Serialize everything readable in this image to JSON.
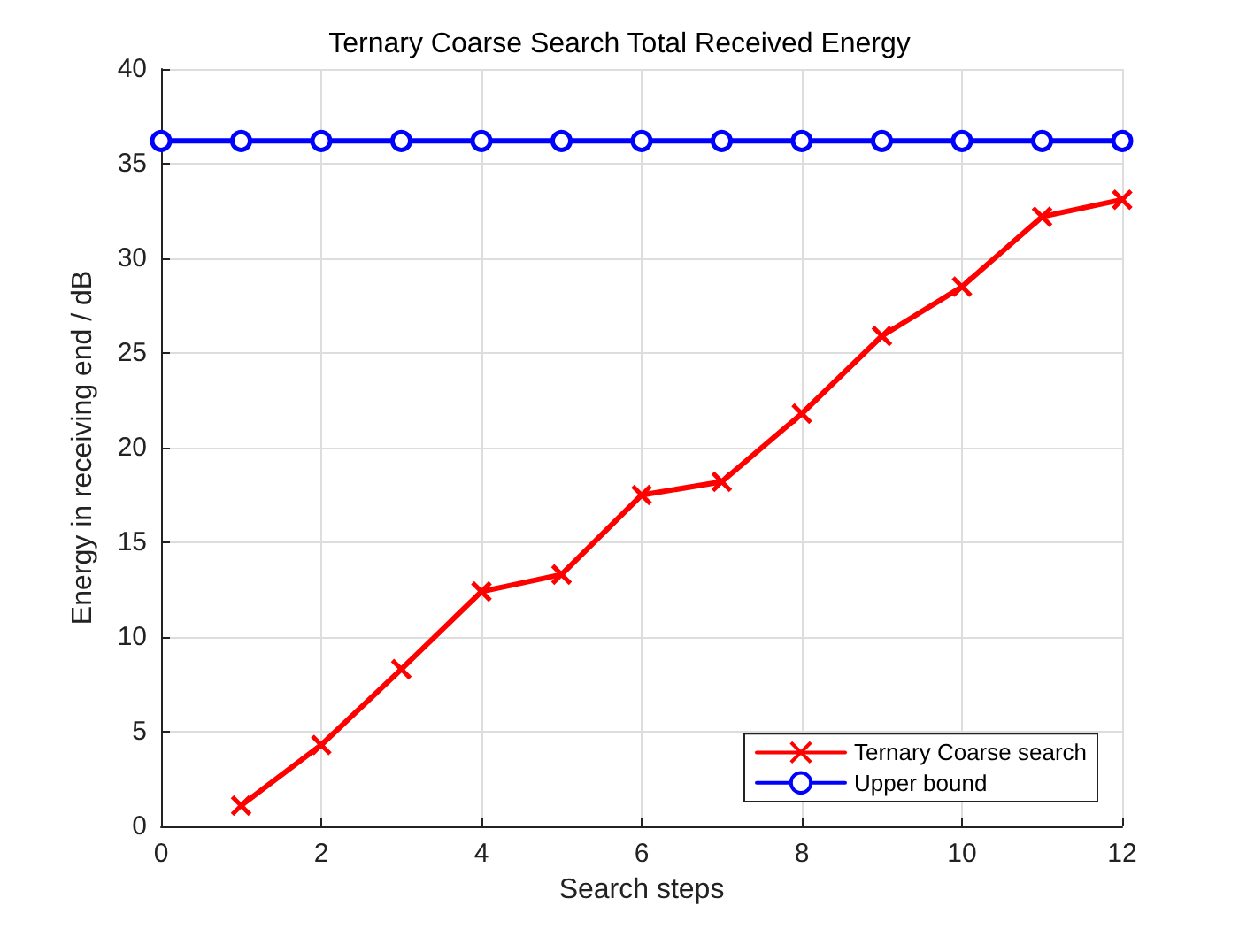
{
  "chart_data": {
    "type": "line",
    "title": "Ternary Coarse Search Total Received Energy",
    "xlabel": "Search steps",
    "ylabel": "Energy in receiving end / dB",
    "series": [
      {
        "name": "Ternary Coarse search",
        "color": "#ff0000",
        "marker": "cross",
        "x": [
          1,
          2,
          3,
          4,
          5,
          6,
          7,
          8,
          9,
          10,
          11,
          12
        ],
        "values": [
          1.1,
          4.3,
          8.3,
          12.4,
          13.3,
          17.5,
          18.2,
          21.8,
          25.9,
          28.5,
          32.2,
          33.1
        ]
      },
      {
        "name": "Upper bound",
        "color": "#0000ff",
        "marker": "circle",
        "x": [
          0,
          1,
          2,
          3,
          4,
          5,
          6,
          7,
          8,
          9,
          10,
          11,
          12
        ],
        "values": [
          36.2,
          36.2,
          36.2,
          36.2,
          36.2,
          36.2,
          36.2,
          36.2,
          36.2,
          36.2,
          36.2,
          36.2,
          36.2
        ]
      }
    ],
    "xlim": [
      0,
      12
    ],
    "xticks": [
      0,
      2,
      4,
      6,
      8,
      10,
      12
    ],
    "ylim": [
      0,
      40
    ],
    "yticks": [
      0,
      5,
      10,
      15,
      20,
      25,
      30,
      35,
      40
    ],
    "grid": true,
    "legend": "bottom right",
    "line_style": "solid"
  }
}
